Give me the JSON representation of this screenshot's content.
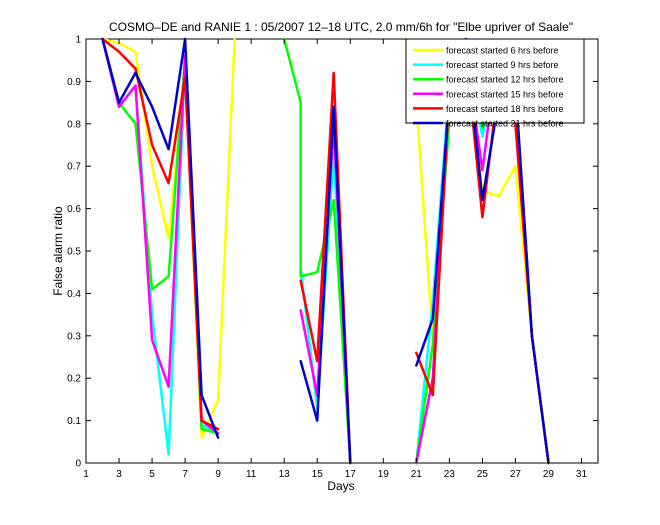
{
  "chart_data": {
    "type": "line",
    "title": "COSMO–DE and RANIE 1 : 05/2007 12–18 UTC, 2.0 mm/6h for \"Elbe upriver of Saale\"",
    "xlabel": "Days",
    "ylabel": "False alarm ratio",
    "xlim": [
      1,
      32
    ],
    "ylim": [
      0,
      1
    ],
    "xticks": [
      1,
      3,
      5,
      7,
      9,
      11,
      13,
      15,
      17,
      19,
      21,
      23,
      25,
      27,
      29,
      31
    ],
    "yticks": [
      0,
      0.1,
      0.2,
      0.3,
      0.4,
      0.5,
      0.6,
      0.7,
      0.8,
      0.9,
      1
    ],
    "ytick_labels": [
      "0",
      "0.1",
      "0.2",
      "0.3",
      "0.4",
      "0.5",
      "0.6",
      "0.7",
      "0.8",
      "0.9",
      "1"
    ],
    "grid": false,
    "legend_position": "top-right",
    "series": [
      {
        "name": "forecast started 6 hrs before",
        "color": "#ffff00",
        "segments": [
          [
            [
              2,
              1
            ],
            [
              3,
              0.99
            ],
            [
              4,
              0.97
            ],
            [
              5,
              0.7
            ],
            [
              6,
              0.53
            ],
            [
              7,
              0.92
            ],
            [
              8,
              0.06
            ],
            [
              9,
              0.15
            ],
            [
              10,
              1.0
            ]
          ],
          [
            [
              20.5,
              1.0
            ],
            [
              21,
              0.85
            ],
            [
              22,
              0.29
            ],
            [
              23,
              0.88
            ],
            [
              24,
              0.98
            ],
            [
              25,
              0.64
            ],
            [
              26,
              0.63
            ],
            [
              27,
              0.7
            ],
            [
              28,
              0.3
            ],
            [
              29,
              0
            ]
          ]
        ]
      },
      {
        "name": "forecast started 9 hrs before",
        "color": "#00ffff",
        "segments": [
          [
            [
              2,
              1
            ],
            [
              3,
              0.84
            ],
            [
              4,
              0.89
            ],
            [
              5,
              0.35
            ],
            [
              6,
              0.02
            ],
            [
              7,
              0.95
            ],
            [
              8,
              0.09
            ],
            [
              9,
              0.07
            ]
          ],
          [
            [
              14,
              0.46
            ],
            [
              15,
              0.13
            ],
            [
              16,
              0.73
            ],
            [
              17,
              0
            ]
          ],
          [
            [
              21,
              0
            ],
            [
              22,
              0.38
            ],
            [
              23,
              0.89
            ],
            [
              24,
              0.97
            ],
            [
              25,
              0.77
            ],
            [
              26,
              0.97
            ],
            [
              27,
              0.87
            ],
            [
              28,
              0.3
            ],
            [
              29,
              0
            ]
          ]
        ]
      },
      {
        "name": "forecast started 12 hrs before",
        "color": "#00ff00",
        "segments": [
          [
            [
              2,
              1
            ],
            [
              3,
              0.85
            ],
            [
              4,
              0.8
            ],
            [
              5,
              0.41
            ],
            [
              6,
              0.44
            ],
            [
              7,
              0.96
            ],
            [
              8,
              0.08
            ],
            [
              9,
              0.07
            ]
          ],
          [
            [
              13,
              1.0
            ],
            [
              14,
              0.85
            ],
            [
              14,
              0.44
            ],
            [
              15,
              0.45
            ],
            [
              16,
              0.62
            ],
            [
              17,
              0
            ]
          ],
          [
            [
              21,
              0
            ],
            [
              22,
              0.28
            ],
            [
              23,
              0.81
            ],
            [
              24,
              0.98
            ],
            [
              25,
              0.79
            ],
            [
              26,
              0.94
            ],
            [
              27,
              0.87
            ],
            [
              28,
              0.3
            ],
            [
              29,
              0
            ]
          ]
        ]
      },
      {
        "name": "forecast started 15 hrs before",
        "color": "#ff00ff",
        "segments": [
          [
            [
              2,
              1
            ],
            [
              3,
              0.84
            ],
            [
              4,
              0.89
            ],
            [
              5,
              0.29
            ],
            [
              6,
              0.18
            ],
            [
              7,
              0.96
            ],
            [
              8,
              0.1
            ],
            [
              9,
              0.07
            ]
          ],
          [
            [
              14,
              0.36
            ],
            [
              15,
              0.16
            ],
            [
              16,
              0.8
            ],
            [
              17,
              0
            ]
          ],
          [
            [
              21,
              0
            ],
            [
              22,
              0.2
            ],
            [
              23,
              0.89
            ],
            [
              24,
              0.97
            ],
            [
              25,
              0.69
            ],
            [
              26,
              0.99
            ],
            [
              27,
              0.89
            ],
            [
              28,
              0.3
            ],
            [
              29,
              0
            ]
          ]
        ]
      },
      {
        "name": "forecast started 18 hrs before",
        "color": "#ff0000",
        "segments": [
          [
            [
              2,
              1
            ],
            [
              3,
              0.97
            ],
            [
              4,
              0.93
            ],
            [
              5,
              0.75
            ],
            [
              6,
              0.66
            ],
            [
              7,
              0.91
            ],
            [
              8,
              0.1
            ],
            [
              9,
              0.08
            ]
          ],
          [
            [
              14,
              0.43
            ],
            [
              15,
              0.24
            ],
            [
              16,
              0.92
            ],
            [
              17,
              0
            ]
          ],
          [
            [
              21,
              0.26
            ],
            [
              22,
              0.16
            ],
            [
              23,
              0.88
            ],
            [
              24,
              0.97
            ],
            [
              25,
              0.58
            ],
            [
              26,
              0.9
            ],
            [
              27,
              0.8
            ],
            [
              28,
              0.3
            ],
            [
              29,
              0
            ]
          ]
        ]
      },
      {
        "name": "forecast started 21 hrs before",
        "color": "#0000cc",
        "segments": [
          [
            [
              2,
              1
            ],
            [
              3,
              0.85
            ],
            [
              4,
              0.92
            ],
            [
              5,
              0.84
            ],
            [
              6,
              0.74
            ],
            [
              7,
              1.0
            ],
            [
              8,
              0.16
            ],
            [
              9,
              0.06
            ]
          ],
          [
            [
              14,
              0.24
            ],
            [
              15,
              0.1
            ],
            [
              16,
              0.84
            ],
            [
              17,
              0
            ]
          ],
          [
            [
              21,
              0.23
            ],
            [
              22,
              0.34
            ],
            [
              23,
              0.87
            ],
            [
              24,
              1.0
            ],
            [
              25,
              0.62
            ],
            [
              26,
              0.86
            ],
            [
              27,
              0.89
            ],
            [
              28,
              0.3
            ],
            [
              29,
              0
            ]
          ]
        ]
      }
    ]
  }
}
